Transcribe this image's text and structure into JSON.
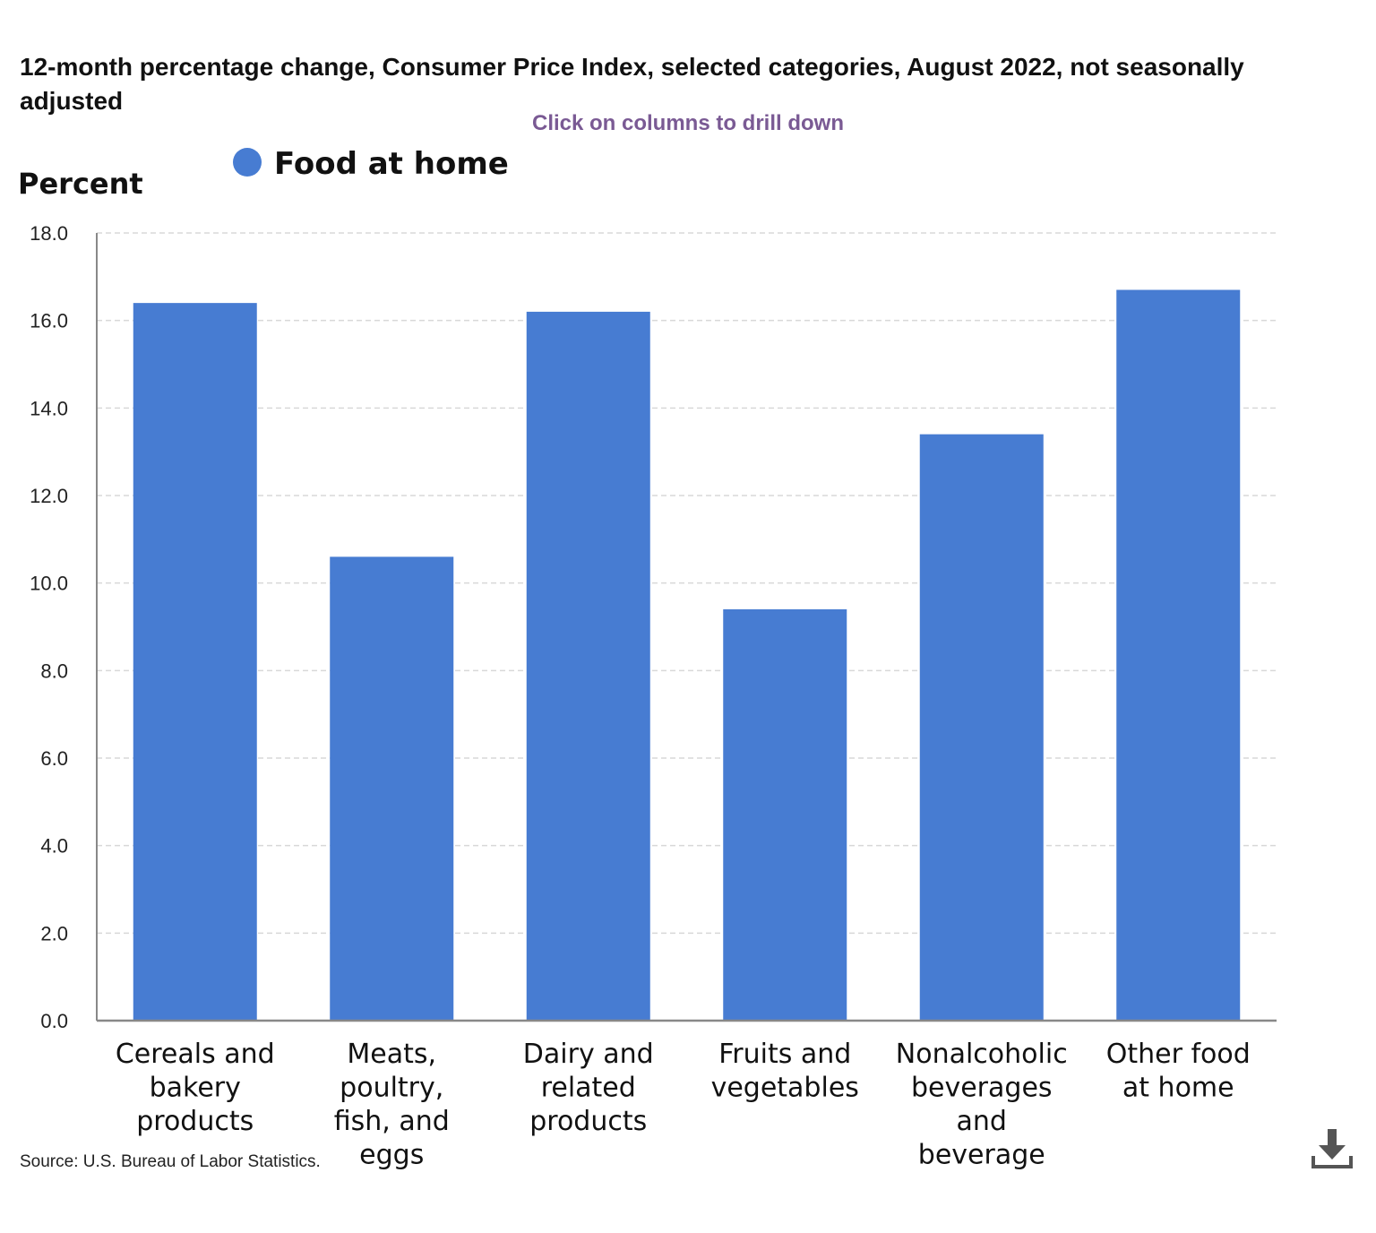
{
  "chart_data": {
    "type": "bar",
    "title": "12-month percentage change, Consumer Price Index, selected categories, August 2022, not seasonally adjusted",
    "subtitle": "Click on columns to drill down",
    "ylabel": "Percent",
    "xlabel": "",
    "ylim": [
      0,
      18
    ],
    "yticks": [
      "0.0",
      "2.0",
      "4.0",
      "6.0",
      "8.0",
      "10.0",
      "12.0",
      "14.0",
      "16.0",
      "18.0"
    ],
    "grid": true,
    "legend_position": "top-left",
    "categories": [
      "Cereals and bakery products",
      "Meats, poultry, fish, and eggs",
      "Dairy and related products",
      "Fruits and vegetables",
      "Nonalcoholic beverages and beverage materials",
      "Other food at home"
    ],
    "category_label_lines": [
      [
        "Cereals and",
        "bakery",
        "products"
      ],
      [
        "Meats,",
        "poultry,",
        "fish, and",
        "eggs"
      ],
      [
        "Dairy and",
        "related",
        "products"
      ],
      [
        "Fruits and",
        "vegetables"
      ],
      [
        "Nonalcoholic",
        "beverages",
        "and",
        "beverage"
      ],
      [
        "Other food",
        "at home"
      ]
    ],
    "series": [
      {
        "name": "Food at home",
        "color": "#477cd2",
        "values": [
          16.4,
          10.6,
          16.2,
          9.4,
          13.4,
          16.7
        ]
      }
    ],
    "source": "Source: U.S. Bureau of Labor Statistics."
  },
  "colors": {
    "bar": "#477cd2",
    "grid": "#d8d8d8",
    "axis": "#888888",
    "drill_hint": "#7a5a94"
  },
  "icons": {
    "download": "download-icon"
  }
}
